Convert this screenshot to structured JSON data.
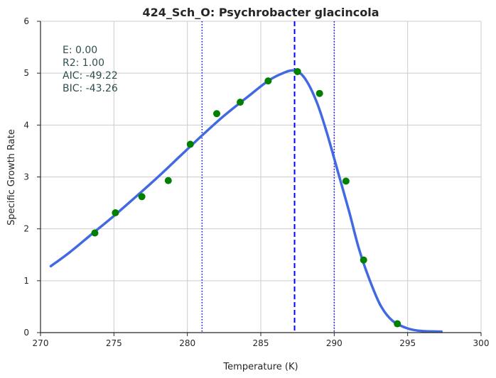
{
  "chart_data": {
    "type": "line",
    "title": "424_Sch_O: Psychrobacter glacincola",
    "xlabel": "Temperature (K)",
    "ylabel": "Specific Growth Rate",
    "xlim": [
      270,
      300
    ],
    "ylim": [
      0,
      6
    ],
    "xticks": [
      270,
      275,
      280,
      285,
      290,
      295,
      300
    ],
    "yticks": [
      0,
      1,
      2,
      3,
      4,
      5,
      6
    ],
    "grid": true,
    "annotations": [
      "E:  0.00",
      "R2:  1.00",
      "AIC: -49.22",
      "BIC: -43.26"
    ],
    "vlines": [
      {
        "x": 281.0,
        "style": "dotted",
        "color": "#0000ff"
      },
      {
        "x": 287.3,
        "style": "dashed",
        "color": "#0000ff"
      },
      {
        "x": 290.0,
        "style": "dotted",
        "color": "#0000ff"
      }
    ],
    "series": [
      {
        "kind": "line",
        "color": "#4169e1",
        "x": [
          270.7,
          272.0,
          273.5,
          275.0,
          276.5,
          278.0,
          279.5,
          281.0,
          282.5,
          284.0,
          285.5,
          286.5,
          287.3,
          288.0,
          288.8,
          289.5,
          290.2,
          291.0,
          291.7,
          292.5,
          293.2,
          294.0,
          295.0,
          296.0,
          297.3
        ],
        "y": [
          1.28,
          1.55,
          1.9,
          2.25,
          2.62,
          3.0,
          3.4,
          3.8,
          4.18,
          4.52,
          4.85,
          5.0,
          5.05,
          4.9,
          4.45,
          3.85,
          3.15,
          2.35,
          1.6,
          0.95,
          0.5,
          0.22,
          0.08,
          0.03,
          0.02
        ]
      },
      {
        "kind": "scatter",
        "color": "#008000",
        "x": [
          273.7,
          275.1,
          276.9,
          278.7,
          280.2,
          282.0,
          283.6,
          285.5,
          287.5,
          289.0,
          290.8,
          292.0,
          294.3
        ],
        "y": [
          1.92,
          2.31,
          2.62,
          2.93,
          3.63,
          4.22,
          4.44,
          4.85,
          5.03,
          4.61,
          2.92,
          1.4,
          0.17
        ]
      }
    ]
  }
}
